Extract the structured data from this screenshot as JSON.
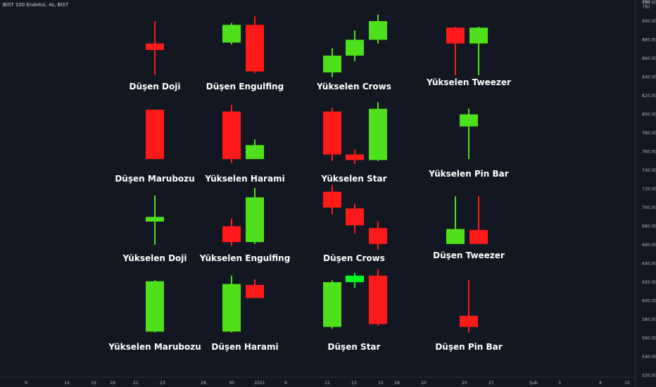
{
  "header": {
    "symbol": "BIST 100 Endeksi, 4s, BIST"
  },
  "currency": {
    "top": "TRY",
    "badge": "TRY"
  },
  "colors": {
    "background": "#131722",
    "bull": "#4ee01a",
    "bear": "#ff1a1a",
    "bright_bull": "#00ff22"
  },
  "price_axis": {
    "labels": [
      "920.00",
      "900.00",
      "880.00",
      "860.00",
      "840.00",
      "820.00",
      "800.00",
      "780.00",
      "760.00",
      "740.00",
      "720.00",
      "700.00",
      "680.00",
      "660.00",
      "640.00",
      "620.00",
      "600.00",
      "580.00",
      "560.00",
      "540.00",
      "520.00"
    ]
  },
  "time_axis": {
    "labels": [
      "9",
      "14",
      "16",
      "18",
      "21",
      "23",
      "28",
      "30",
      "2021",
      "6",
      "11",
      "13",
      "15",
      "18",
      "20",
      "25",
      "27",
      "Şub",
      "3",
      "8",
      "10"
    ]
  },
  "patterns": [
    {
      "label": "Düşen Doji"
    },
    {
      "label": "Düşen Engulfing"
    },
    {
      "label": "Yükselen Crows"
    },
    {
      "label": "Yükselen Tweezer"
    },
    {
      "label": "Düşen Marubozu"
    },
    {
      "label": "Yükselen Harami"
    },
    {
      "label": "Yükselen Star"
    },
    {
      "label": "Yükselen Pin Bar"
    },
    {
      "label": "Yükselen Doji"
    },
    {
      "label": "Yükselen Engulfing"
    },
    {
      "label": "Düşen Crows"
    },
    {
      "label": "Düşen Tweezer"
    },
    {
      "label": "Yükselen Marubozu"
    },
    {
      "label": "Düşen Harami"
    },
    {
      "label": "Düşen Star"
    },
    {
      "label": "Düşen Pin Bar"
    }
  ],
  "candles": [
    {
      "pattern": 0,
      "x_label": "21",
      "open": 876,
      "high": 900,
      "low": 842,
      "close": 869,
      "color": "bear"
    },
    {
      "pattern": 1,
      "x_label": "28",
      "open": 877,
      "high": 898,
      "low": 875,
      "close": 896,
      "color": "bull"
    },
    {
      "pattern": 1,
      "x_label": "30",
      "open": 896,
      "high": 905,
      "low": 844,
      "close": 846,
      "color": "bear"
    },
    {
      "pattern": 2,
      "x_label": "11",
      "open": 845,
      "high": 871,
      "low": 840,
      "close": 863,
      "color": "bull"
    },
    {
      "pattern": 2,
      "x_label": "13",
      "open": 863,
      "high": 890,
      "low": 857,
      "close": 880,
      "color": "bull"
    },
    {
      "pattern": 2,
      "x_label": "15",
      "open": 880,
      "high": 907,
      "low": 876,
      "close": 900,
      "color": "bull"
    },
    {
      "pattern": 3,
      "x_label": "24",
      "open": 893,
      "high": 894,
      "low": 842,
      "close": 876,
      "color": "bear"
    },
    {
      "pattern": 3,
      "x_label": "26",
      "open": 876,
      "high": 894,
      "low": 842,
      "close": 893,
      "color": "bull"
    },
    {
      "pattern": 4,
      "x_label": "21",
      "open": 805,
      "high": 805,
      "low": 752,
      "close": 752,
      "color": "bear"
    },
    {
      "pattern": 5,
      "x_label": "28",
      "open": 803,
      "high": 810,
      "low": 748,
      "close": 752,
      "color": "bear"
    },
    {
      "pattern": 5,
      "x_label": "30",
      "open": 752,
      "high": 773,
      "low": 752,
      "close": 767,
      "color": "bull"
    },
    {
      "pattern": 6,
      "x_label": "11",
      "open": 803,
      "high": 807,
      "low": 750,
      "close": 757,
      "color": "bear"
    },
    {
      "pattern": 6,
      "x_label": "13",
      "open": 757,
      "high": 762,
      "low": 747,
      "close": 751,
      "color": "bear"
    },
    {
      "pattern": 6,
      "x_label": "15",
      "open": 751,
      "high": 813,
      "low": 750,
      "close": 806,
      "color": "bull"
    },
    {
      "pattern": 7,
      "x_label": "25",
      "open": 787,
      "high": 806,
      "low": 752,
      "close": 800,
      "color": "bull"
    },
    {
      "pattern": 8,
      "x_label": "21",
      "open": 685,
      "high": 713,
      "low": 660,
      "close": 690,
      "color": "bull"
    },
    {
      "pattern": 9,
      "x_label": "28",
      "open": 680,
      "high": 688,
      "low": 659,
      "close": 663,
      "color": "bear"
    },
    {
      "pattern": 9,
      "x_label": "30",
      "open": 663,
      "high": 721,
      "low": 661,
      "close": 711,
      "color": "bull"
    },
    {
      "pattern": 10,
      "x_label": "11",
      "open": 717,
      "high": 724,
      "low": 693,
      "close": 700,
      "color": "bear"
    },
    {
      "pattern": 10,
      "x_label": "13",
      "open": 699,
      "high": 704,
      "low": 672,
      "close": 681,
      "color": "bear"
    },
    {
      "pattern": 10,
      "x_label": "15",
      "open": 678,
      "high": 685,
      "low": 655,
      "close": 661,
      "color": "bear"
    },
    {
      "pattern": 11,
      "x_label": "24",
      "open": 661,
      "high": 712,
      "low": 661,
      "close": 677,
      "color": "bull"
    },
    {
      "pattern": 11,
      "x_label": "26",
      "open": 676,
      "high": 712,
      "low": 661,
      "close": 661,
      "color": "bear"
    },
    {
      "pattern": 12,
      "x_label": "21",
      "open": 567,
      "high": 622,
      "low": 566,
      "close": 621,
      "color": "bull"
    },
    {
      "pattern": 13,
      "x_label": "28",
      "open": 567,
      "high": 627,
      "low": 566,
      "close": 618,
      "color": "bull"
    },
    {
      "pattern": 13,
      "x_label": "30",
      "open": 617,
      "high": 623,
      "low": 603,
      "close": 603,
      "color": "bear"
    },
    {
      "pattern": 14,
      "x_label": "11",
      "open": 572,
      "high": 622,
      "low": 570,
      "close": 620,
      "color": "bull"
    },
    {
      "pattern": 14,
      "x_label": "13",
      "open": 620,
      "high": 630,
      "low": 614,
      "close": 627,
      "color": "bright_bull"
    },
    {
      "pattern": 14,
      "x_label": "15",
      "open": 627,
      "high": 634,
      "low": 573,
      "close": 575,
      "color": "bear"
    },
    {
      "pattern": 15,
      "x_label": "25",
      "open": 584,
      "high": 622,
      "low": 566,
      "close": 572,
      "color": "bear"
    }
  ]
}
